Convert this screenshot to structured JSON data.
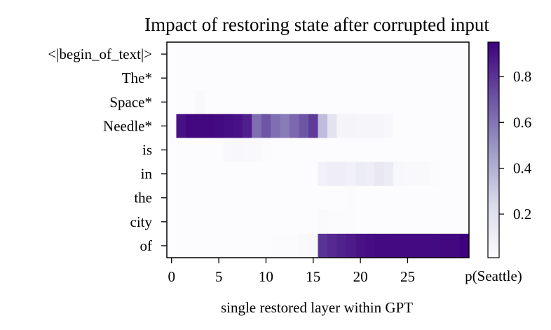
{
  "chart_data": {
    "type": "heatmap",
    "title": "Impact of restoring state after corrupted input",
    "xlabel": "single restored layer within GPT",
    "ylabel": "",
    "colorbar_label": "p(Seattle)",
    "colormap": "Purples",
    "color_low": "#fcfbfd",
    "color_high": "#3f007d",
    "xlim": [
      0,
      31
    ],
    "x_ticks": [
      0,
      5,
      10,
      15,
      20,
      25
    ],
    "rows": [
      "<|begin_of_text|>",
      "The*",
      "Space*",
      "Needle*",
      "is",
      "in",
      "the",
      "city",
      "of"
    ],
    "columns": [
      0,
      1,
      2,
      3,
      4,
      5,
      6,
      7,
      8,
      9,
      10,
      11,
      12,
      13,
      14,
      15,
      16,
      17,
      18,
      19,
      20,
      21,
      22,
      23,
      24,
      25,
      26,
      27,
      28,
      29,
      30,
      31
    ],
    "values": [
      [
        0.01,
        0.01,
        0.01,
        0.01,
        0.01,
        0.01,
        0.01,
        0.01,
        0.01,
        0.01,
        0.01,
        0.01,
        0.01,
        0.01,
        0.01,
        0.01,
        0.01,
        0.01,
        0.01,
        0.01,
        0.01,
        0.01,
        0.01,
        0.01,
        0.01,
        0.01,
        0.01,
        0.01,
        0.01,
        0.01,
        0.01,
        0.01
      ],
      [
        0.01,
        0.01,
        0.01,
        0.01,
        0.01,
        0.01,
        0.01,
        0.01,
        0.01,
        0.01,
        0.01,
        0.01,
        0.01,
        0.01,
        0.01,
        0.01,
        0.01,
        0.01,
        0.01,
        0.01,
        0.01,
        0.01,
        0.01,
        0.01,
        0.01,
        0.01,
        0.01,
        0.01,
        0.01,
        0.01,
        0.01,
        0.01
      ],
      [
        0.01,
        0.01,
        0.01,
        0.03,
        0.01,
        0.01,
        0.01,
        0.01,
        0.01,
        0.01,
        0.01,
        0.01,
        0.01,
        0.01,
        0.01,
        0.01,
        0.01,
        0.01,
        0.01,
        0.01,
        0.01,
        0.01,
        0.01,
        0.01,
        0.01,
        0.01,
        0.01,
        0.01,
        0.01,
        0.01,
        0.01,
        0.01
      ],
      [
        0.01,
        0.9,
        0.93,
        0.93,
        0.93,
        0.92,
        0.91,
        0.9,
        0.86,
        0.62,
        0.7,
        0.62,
        0.58,
        0.64,
        0.7,
        0.78,
        0.35,
        0.18,
        0.06,
        0.06,
        0.05,
        0.05,
        0.05,
        0.04,
        0.01,
        0.01,
        0.01,
        0.01,
        0.01,
        0.01,
        0.01,
        0.01
      ],
      [
        0.01,
        0.01,
        0.01,
        0.01,
        0.01,
        0.01,
        0.03,
        0.04,
        0.03,
        0.03,
        0.02,
        0.01,
        0.01,
        0.01,
        0.01,
        0.01,
        0.01,
        0.01,
        0.01,
        0.01,
        0.01,
        0.01,
        0.01,
        0.01,
        0.01,
        0.01,
        0.01,
        0.01,
        0.01,
        0.01,
        0.01,
        0.01
      ],
      [
        0.01,
        0.01,
        0.01,
        0.01,
        0.01,
        0.01,
        0.01,
        0.01,
        0.01,
        0.01,
        0.01,
        0.01,
        0.01,
        0.01,
        0.01,
        0.01,
        0.08,
        0.1,
        0.1,
        0.08,
        0.12,
        0.1,
        0.15,
        0.12,
        0.04,
        0.03,
        0.03,
        0.03,
        0.02,
        0.01,
        0.01,
        0.01
      ],
      [
        0.01,
        0.01,
        0.01,
        0.01,
        0.01,
        0.01,
        0.01,
        0.01,
        0.01,
        0.01,
        0.01,
        0.01,
        0.01,
        0.01,
        0.01,
        0.01,
        0.01,
        0.01,
        0.01,
        0.02,
        0.01,
        0.01,
        0.01,
        0.01,
        0.01,
        0.01,
        0.01,
        0.01,
        0.01,
        0.01,
        0.01,
        0.01
      ],
      [
        0.01,
        0.01,
        0.01,
        0.01,
        0.01,
        0.01,
        0.01,
        0.01,
        0.01,
        0.01,
        0.01,
        0.01,
        0.01,
        0.01,
        0.01,
        0.01,
        0.03,
        0.02,
        0.02,
        0.02,
        0.01,
        0.01,
        0.01,
        0.01,
        0.01,
        0.01,
        0.01,
        0.01,
        0.01,
        0.01,
        0.01,
        0.01
      ],
      [
        0.01,
        0.01,
        0.01,
        0.01,
        0.01,
        0.01,
        0.01,
        0.01,
        0.01,
        0.01,
        0.01,
        0.02,
        0.02,
        0.02,
        0.03,
        0.04,
        0.8,
        0.83,
        0.85,
        0.87,
        0.9,
        0.91,
        0.92,
        0.92,
        0.92,
        0.92,
        0.92,
        0.92,
        0.92,
        0.93,
        0.93,
        0.95
      ]
    ],
    "colorbar_range": [
      0.01,
      0.95
    ],
    "colorbar_ticks": [
      0.2,
      0.4,
      0.6,
      0.8
    ]
  }
}
